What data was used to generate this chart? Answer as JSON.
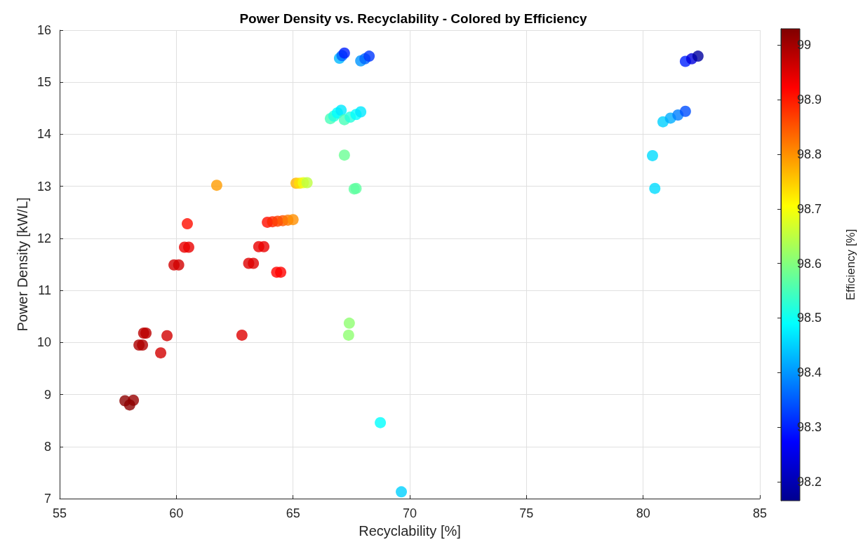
{
  "chart_data": {
    "type": "scatter",
    "title": "Power Density vs. Recyclability - Colored by Efficiency",
    "xlabel": "Recyclability [%]",
    "ylabel": "Power Density [kW/L]",
    "clabel": "Efficiency [%]",
    "x": [
      57.8,
      58.16,
      58.0,
      58.4,
      58.55,
      58.6,
      58.7,
      59.33,
      59.6,
      59.9,
      60.1,
      60.35,
      60.53,
      60.47,
      61.73,
      62.81,
      63.1,
      63.3,
      63.53,
      63.75,
      64.3,
      64.47,
      63.9,
      64.12,
      64.34,
      64.56,
      64.78,
      65.0,
      65.13,
      65.28,
      65.44,
      65.6,
      67.2,
      67.62,
      67.7,
      67.41,
      67.38,
      68.74,
      69.64,
      66.6,
      66.75,
      66.9,
      67.06,
      67.2,
      67.45,
      67.7,
      67.9,
      66.99,
      67.1,
      67.2,
      67.9,
      68.08,
      68.26,
      81.81,
      82.08,
      82.35,
      80.85,
      81.17,
      81.49,
      81.81,
      80.4,
      80.5
    ],
    "values": [
      8.88,
      8.89,
      8.8,
      9.95,
      9.95,
      10.18,
      10.18,
      9.8,
      10.13,
      11.49,
      11.49,
      11.83,
      11.83,
      12.28,
      13.02,
      10.14,
      11.52,
      11.52,
      11.84,
      11.84,
      11.35,
      11.35,
      12.31,
      12.32,
      12.33,
      12.34,
      12.35,
      12.36,
      13.06,
      13.06,
      13.07,
      13.07,
      13.6,
      12.95,
      12.96,
      10.37,
      10.14,
      8.46,
      7.13,
      14.3,
      14.35,
      14.41,
      14.46,
      14.28,
      14.33,
      14.38,
      14.43,
      15.46,
      15.51,
      15.56,
      15.41,
      15.45,
      15.5,
      15.4,
      15.45,
      15.5,
      14.24,
      14.31,
      14.37,
      14.44,
      13.59,
      12.96
    ],
    "cvalues": [
      99.02,
      99.01,
      99.02,
      98.99,
      98.99,
      98.98,
      98.98,
      98.96,
      98.96,
      98.96,
      98.96,
      98.94,
      98.94,
      98.91,
      98.79,
      98.95,
      98.95,
      98.95,
      98.94,
      98.94,
      98.92,
      98.92,
      98.91,
      98.89,
      98.87,
      98.85,
      98.82,
      98.8,
      98.77,
      98.73,
      98.69,
      98.65,
      98.58,
      98.57,
      98.57,
      98.61,
      98.61,
      98.49,
      98.45,
      98.55,
      98.52,
      98.49,
      98.47,
      98.55,
      98.52,
      98.49,
      98.47,
      98.43,
      98.36,
      98.3,
      98.4,
      98.36,
      98.32,
      98.3,
      98.24,
      98.18,
      98.45,
      98.42,
      98.38,
      98.34,
      98.46,
      98.46
    ],
    "clim": [
      98.165,
      99.03
    ],
    "cticks": [
      98.2,
      98.3,
      98.4,
      98.5,
      98.6,
      98.7,
      98.8,
      98.9,
      99
    ],
    "xlim": [
      55,
      85
    ],
    "xticks": [
      55,
      60,
      65,
      70,
      75,
      80,
      85
    ],
    "ylim": [
      7,
      16
    ],
    "yticks": [
      7,
      8,
      9,
      10,
      11,
      12,
      13,
      14,
      15,
      16
    ],
    "grid": true,
    "marker": "circle"
  }
}
